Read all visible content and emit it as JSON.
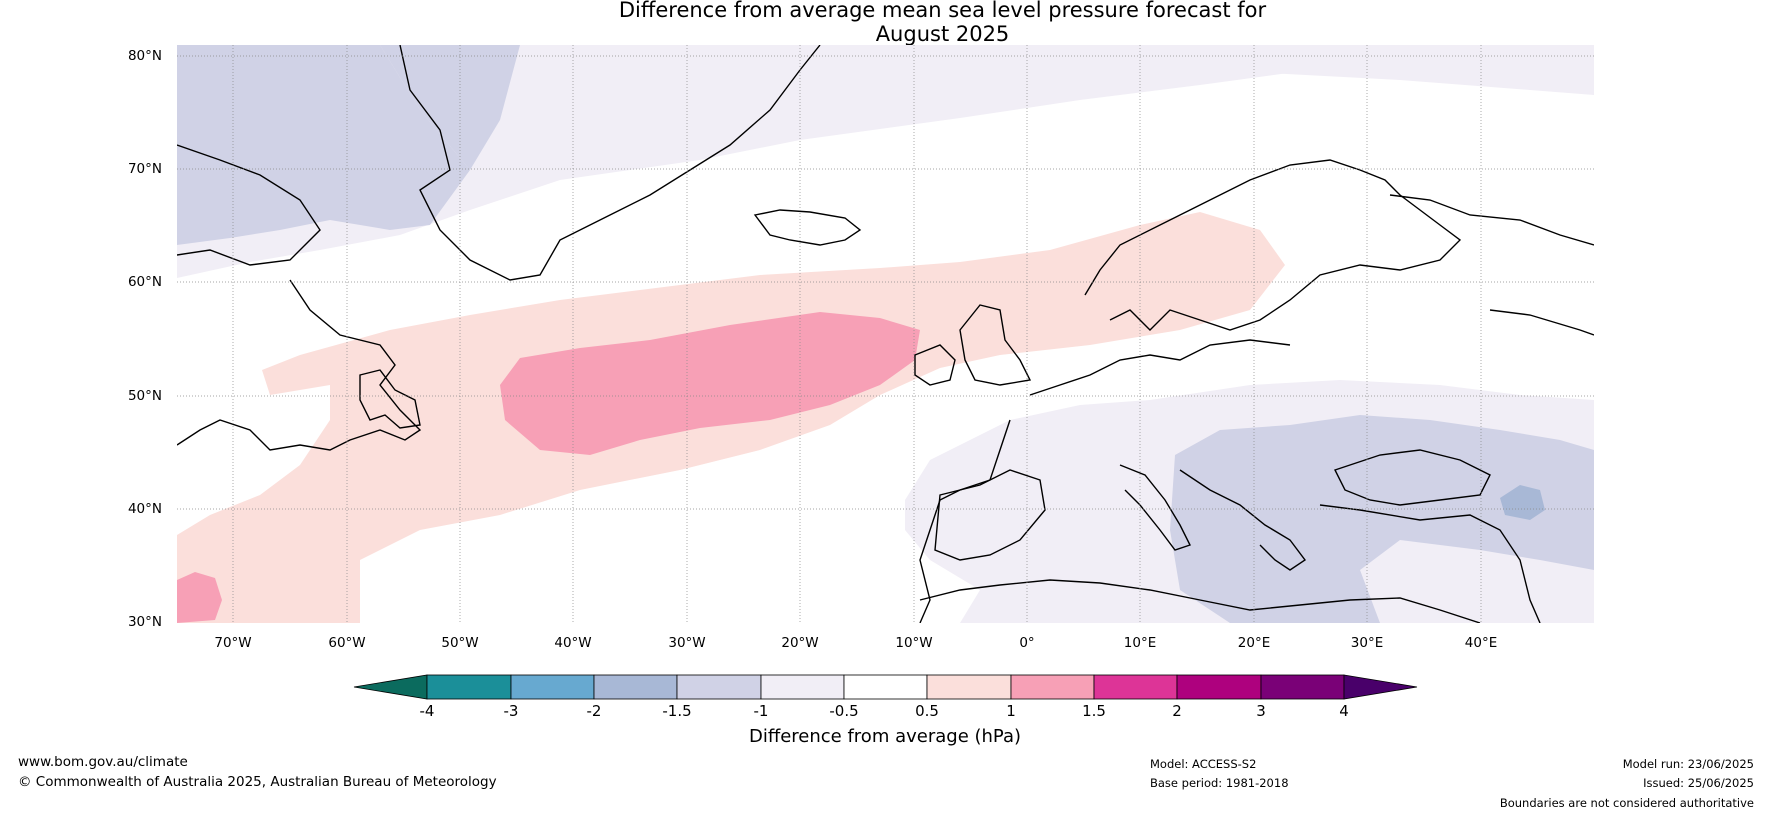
{
  "title": {
    "line1": "Difference from average mean sea level pressure forecast for",
    "line2": "August 2025"
  },
  "map": {
    "region": "North Atlantic and Europe",
    "lat_labels": [
      "80°N",
      "70°N",
      "60°N",
      "50°N",
      "40°N",
      "30°N"
    ],
    "lon_labels": [
      "70°W",
      "60°W",
      "50°W",
      "40°W",
      "30°W",
      "20°W",
      "10°W",
      "0°",
      "10°E",
      "20°E",
      "30°E",
      "40°E"
    ],
    "extent": {
      "lon": [
        -75,
        50
      ],
      "lat": [
        30,
        81
      ]
    }
  },
  "legend": {
    "label": "Difference from average (hPa)",
    "ticks": [
      "-4",
      "-3",
      "-2",
      "-1.5",
      "-1",
      "-0.5",
      "0.5",
      "1",
      "1.5",
      "2",
      "3",
      "4"
    ],
    "colors": {
      "below_-4": "#0b6b5e",
      "-4_-3": "#1b8f99",
      "-3_-2": "#67a9d0",
      "-2_-1.5": "#a8b8d6",
      "-1.5_-1": "#d0d2e6",
      "-1_-0.5": "#f1eef6",
      "-0.5_0.5": "#ffffff",
      "0.5_1": "#fbdfdb",
      "1_1.5": "#f7a0b6",
      "1.5_2": "#dd3497",
      "2_3": "#ae017e",
      "3_4": "#7a0177",
      "above_4": "#49006a"
    }
  },
  "footer": {
    "website": "www.bom.gov.au/climate",
    "copyright": "© Commonwealth of Australia 2025, Australian Bureau of Meteorology",
    "model": "Model: ACCESS-S2",
    "base_period": "Base period: 1981-2018",
    "model_run": "Model run: 23/06/2025",
    "issued": "Issued: 25/06/2025",
    "disclaimer": "Boundaries are not considered authoritative"
  }
}
